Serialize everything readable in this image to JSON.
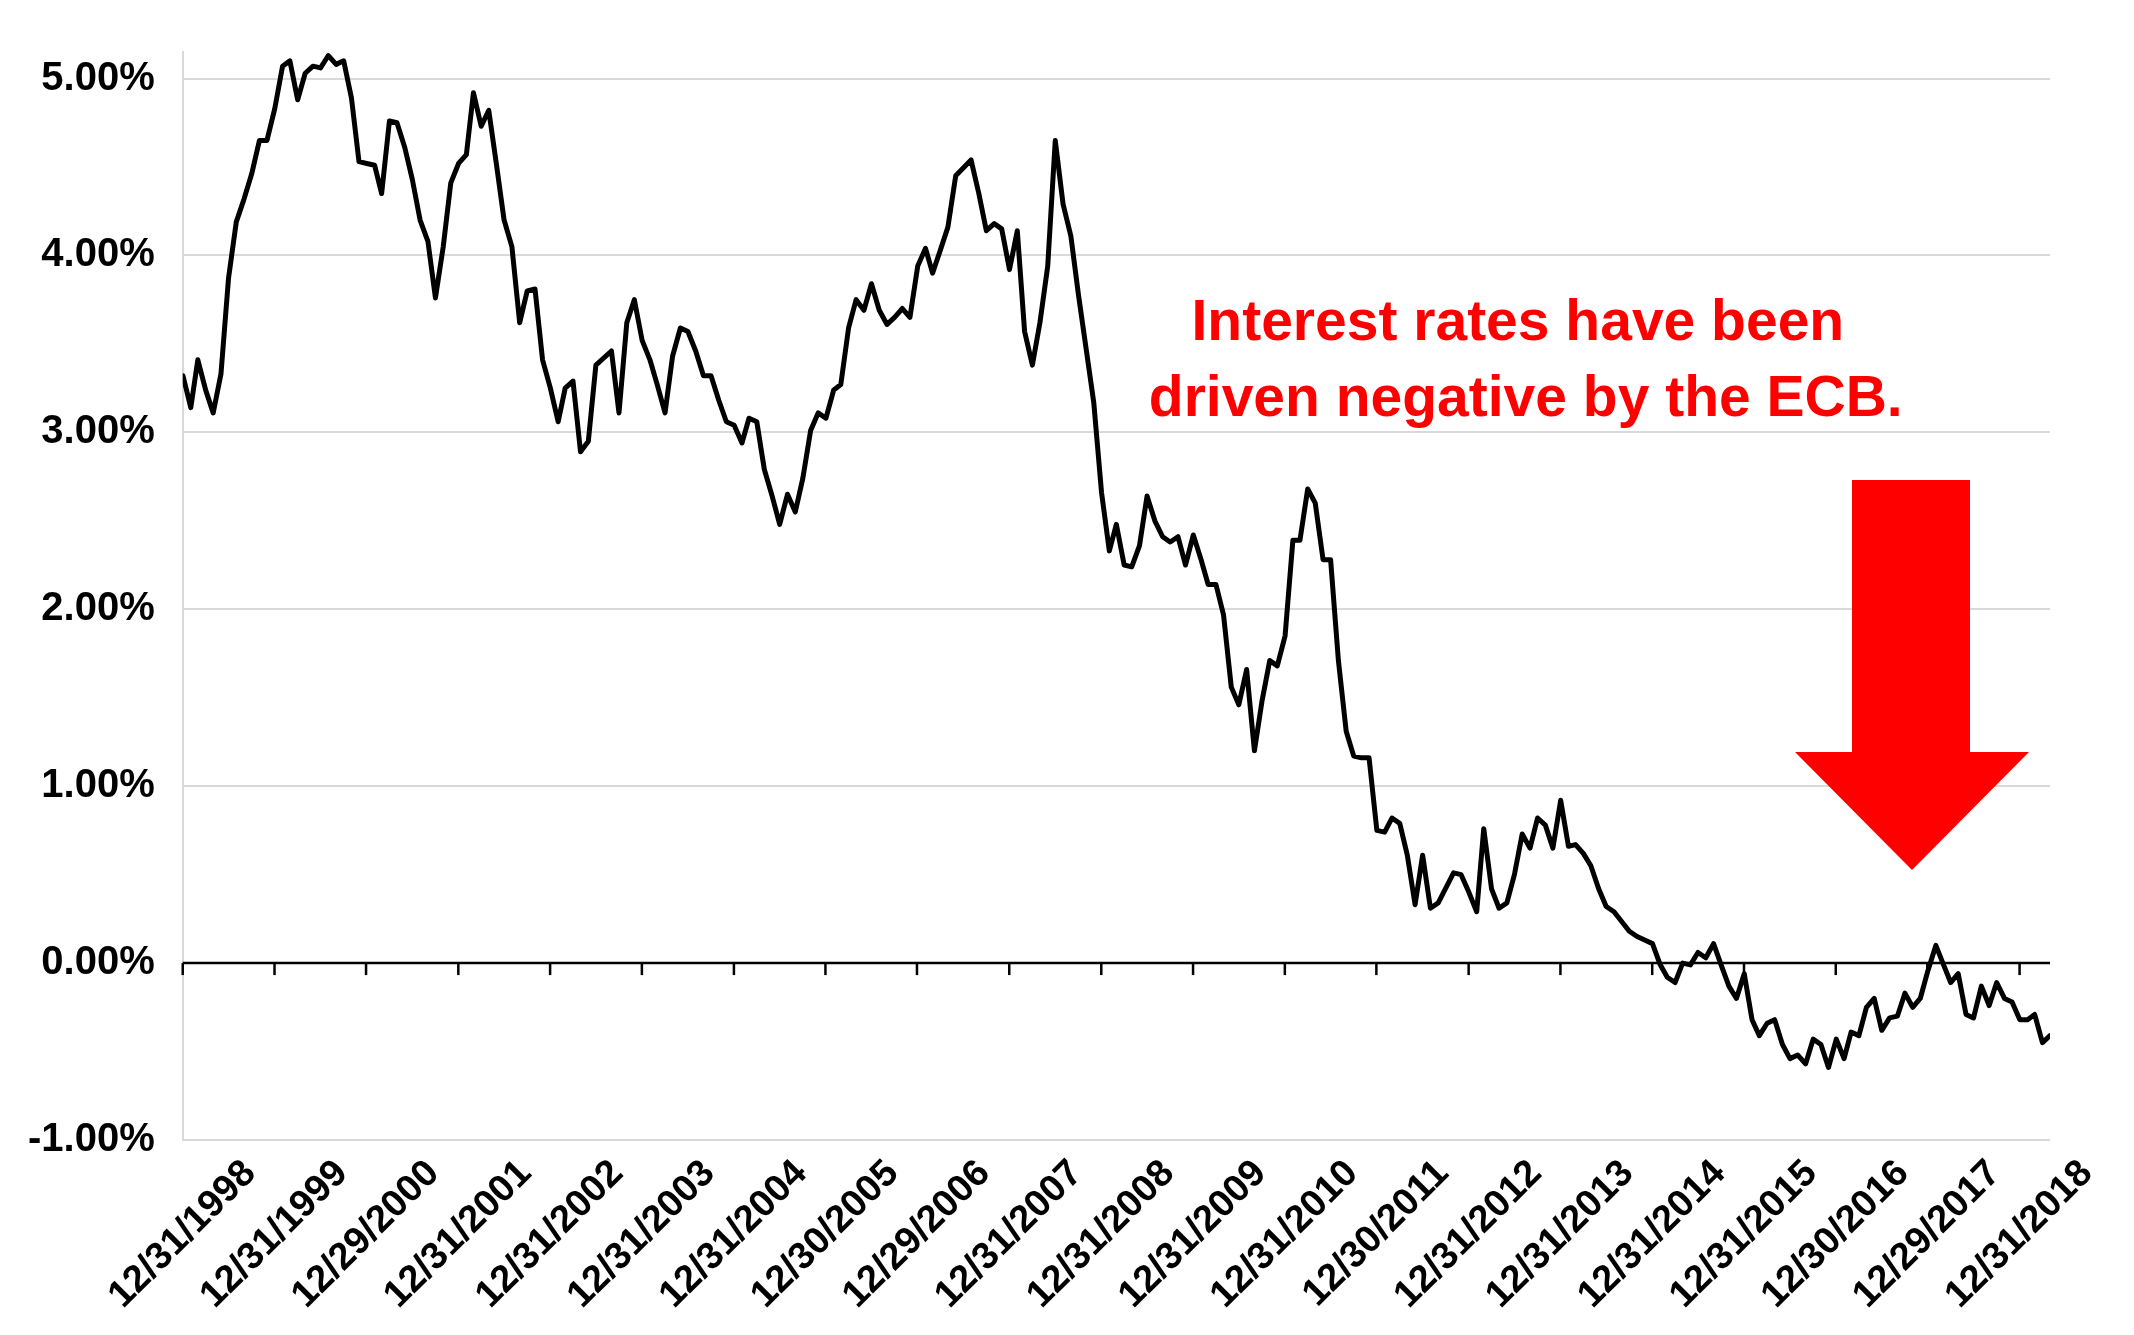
{
  "chart_data": {
    "type": "line",
    "annotations": [
      "Interest rates have been\n driven negative by the ECB."
    ],
    "x": [
      "1999-01",
      "1999-02",
      "1999-03",
      "1999-04",
      "1999-05",
      "1999-06",
      "1999-07",
      "1999-08",
      "1999-09",
      "1999-10",
      "1999-11",
      "1999-12",
      "2000-01",
      "2000-02",
      "2000-03",
      "2000-04",
      "2000-05",
      "2000-06",
      "2000-07",
      "2000-08",
      "2000-09",
      "2000-10",
      "2000-11",
      "2000-12",
      "2001-01",
      "2001-02",
      "2001-03",
      "2001-04",
      "2001-05",
      "2001-06",
      "2001-07",
      "2001-08",
      "2001-09",
      "2001-10",
      "2001-11",
      "2001-12",
      "2002-01",
      "2002-02",
      "2002-03",
      "2002-04",
      "2002-05",
      "2002-06",
      "2002-07",
      "2002-08",
      "2002-09",
      "2002-10",
      "2002-11",
      "2002-12",
      "2003-01",
      "2003-02",
      "2003-03",
      "2003-04",
      "2003-05",
      "2003-06",
      "2003-07",
      "2003-09",
      "2003-10",
      "2003-11",
      "2003-12",
      "2004-01",
      "2004-02",
      "2004-03",
      "2004-04",
      "2004-05",
      "2004-06",
      "2004-07",
      "2004-08",
      "2004-09",
      "2004-10",
      "2004-11",
      "2004-12",
      "2005-01",
      "2005-02",
      "2005-03",
      "2005-04",
      "2005-05",
      "2005-06",
      "2005-07",
      "2005-08",
      "2005-09",
      "2005-10",
      "2005-11",
      "2005-12",
      "2006-01",
      "2006-02",
      "2006-03",
      "2006-04",
      "2006-05",
      "2006-06",
      "2006-07",
      "2006-08",
      "2006-09",
      "2006-10",
      "2006-11",
      "2006-12",
      "2007-01",
      "2007-02",
      "2007-03",
      "2007-04",
      "2007-05",
      "2007-06",
      "2007-08",
      "2007-09",
      "2007-10",
      "2007-11",
      "2007-12",
      "2008-01",
      "2008-02",
      "2008-03",
      "2008-04",
      "2008-05",
      "2008-06",
      "2008-07",
      "2008-08",
      "2008-09",
      "2008-10",
      "2008-12",
      "2009-01",
      "2009-02",
      "2009-03",
      "2009-04",
      "2009-05",
      "2009-06",
      "2009-07",
      "2009-08",
      "2009-09",
      "2009-10",
      "2009-11",
      "2009-12",
      "2010-01",
      "2010-02",
      "2010-03",
      "2010-04",
      "2010-05",
      "2010-06",
      "2010-07",
      "2010-08",
      "2010-09",
      "2010-10",
      "2010-11",
      "2010-12",
      "2011-01",
      "2011-02",
      "2011-03",
      "2011-04",
      "2011-05",
      "2011-06",
      "2011-07",
      "2011-08",
      "2011-09",
      "2011-10",
      "2011-11",
      "2011-12",
      "2012-01",
      "2012-02",
      "2012-03",
      "2012-04",
      "2012-05",
      "2012-06",
      "2012-07",
      "2012-08",
      "2012-09",
      "2012-11",
      "2012-12",
      "2013-01",
      "2013-02",
      "2013-03",
      "2013-04",
      "2013-05",
      "2013-06",
      "2013-07",
      "2013-08",
      "2013-09",
      "2013-10",
      "2013-11",
      "2013-12",
      "2014-01",
      "2014-02",
      "2014-03",
      "2014-04",
      "2014-05",
      "2014-06",
      "2014-07",
      "2014-08",
      "2014-10",
      "2014-11",
      "2014-12",
      "2015-01",
      "2015-02",
      "2015-03",
      "2015-04",
      "2015-05",
      "2015-06",
      "2015-07",
      "2015-08",
      "2015-09",
      "2015-10",
      "2015-11",
      "2015-12",
      "2016-01",
      "2016-02",
      "2016-03",
      "2016-04",
      "2016-05",
      "2016-06",
      "2016-07",
      "2016-08",
      "2016-09",
      "2016-10",
      "2016-11",
      "2016-12",
      "2017-01",
      "2017-02",
      "2017-03",
      "2017-04",
      "2017-05",
      "2017-06",
      "2017-07",
      "2017-08",
      "2017-09",
      "2017-10",
      "2017-11",
      "2017-12",
      "2018-01",
      "2018-02",
      "2018-03",
      "2018-04",
      "2018-05",
      "2018-06",
      "2018-07",
      "2018-08",
      "2018-09",
      "2018-10",
      "2018-11",
      "2018-12",
      "2019-01",
      "2019-02",
      "2019-03",
      "2019-04",
      "2019-05"
    ],
    "series": [
      {
        "color": "#000000",
        "values": [
          3.32,
          3.14,
          3.41,
          3.24,
          3.11,
          3.33,
          3.87,
          4.19,
          4.32,
          4.46,
          4.65,
          4.65,
          4.83,
          5.07,
          5.1,
          4.88,
          5.03,
          5.07,
          5.06,
          5.13,
          5.08,
          5.1,
          4.89,
          4.53,
          4.52,
          4.51,
          4.35,
          4.76,
          4.75,
          4.61,
          4.43,
          4.2,
          4.08,
          3.76,
          4.05,
          4.41,
          4.52,
          4.57,
          4.92,
          4.73,
          4.82,
          4.51,
          4.2,
          4.05,
          3.62,
          3.8,
          3.81,
          3.41,
          3.25,
          3.06,
          3.25,
          3.29,
          2.89,
          2.95,
          3.38,
          3.46,
          3.11,
          3.62,
          3.75,
          3.52,
          3.41,
          3.27,
          3.11,
          3.43,
          3.59,
          3.57,
          3.46,
          3.32,
          3.32,
          3.18,
          3.06,
          3.04,
          2.94,
          3.08,
          3.06,
          2.79,
          2.64,
          2.48,
          2.65,
          2.55,
          2.74,
          3.01,
          3.11,
          3.08,
          3.24,
          3.27,
          3.59,
          3.75,
          3.69,
          3.84,
          3.69,
          3.61,
          3.65,
          3.7,
          3.65,
          3.94,
          4.04,
          3.9,
          4.03,
          4.16,
          4.45,
          4.54,
          4.35,
          4.14,
          4.18,
          4.15,
          3.92,
          4.14,
          3.57,
          3.38,
          3.62,
          3.94,
          4.65,
          4.29,
          4.11,
          3.78,
          3.17,
          2.66,
          2.33,
          2.48,
          2.25,
          2.24,
          2.36,
          2.64,
          2.5,
          2.41,
          2.38,
          2.41,
          2.25,
          2.42,
          2.28,
          2.14,
          2.14,
          1.97,
          1.56,
          1.46,
          1.66,
          1.2,
          1.48,
          1.71,
          1.68,
          1.85,
          2.39,
          2.39,
          2.68,
          2.6,
          2.28,
          2.28,
          1.71,
          1.31,
          1.17,
          1.16,
          1.16,
          0.75,
          0.74,
          0.82,
          0.79,
          0.61,
          0.33,
          0.61,
          0.31,
          0.34,
          0.51,
          0.5,
          0.4,
          0.29,
          0.76,
          0.42,
          0.31,
          0.34,
          0.5,
          0.73,
          0.65,
          0.82,
          0.78,
          0.65,
          0.92,
          0.66,
          0.67,
          0.62,
          0.55,
          0.42,
          0.32,
          0.29,
          0.18,
          0.15,
          0.13,
          0.11,
          -0.01,
          -0.08,
          -0.11,
          0.0,
          -0.01,
          0.06,
          0.03,
          0.11,
          -0.01,
          -0.13,
          -0.2,
          -0.06,
          -0.32,
          -0.41,
          -0.34,
          -0.32,
          -0.46,
          -0.54,
          -0.52,
          -0.57,
          -0.43,
          -0.46,
          -0.59,
          -0.43,
          -0.54,
          -0.39,
          -0.41,
          -0.25,
          -0.2,
          -0.38,
          -0.31,
          -0.3,
          -0.17,
          -0.25,
          -0.2,
          -0.04,
          0.1,
          0.0,
          -0.11,
          -0.06,
          -0.29,
          -0.31,
          -0.13,
          -0.24,
          -0.11,
          -0.2,
          -0.22,
          -0.32,
          -0.32,
          -0.29,
          -0.45,
          -0.41
        ]
      }
    ],
    "xlim": [
      "1998-12-31",
      "2019-05-01"
    ],
    "xticks": [
      {
        "value": "1998-12-31",
        "label": "12/31/1998"
      },
      {
        "value": "1999-12-31",
        "label": "12/31/1999"
      },
      {
        "value": "2000-12-29",
        "label": "12/29/2000"
      },
      {
        "value": "2001-12-31",
        "label": "12/31/2001"
      },
      {
        "value": "2002-12-31",
        "label": "12/31/2002"
      },
      {
        "value": "2003-12-31",
        "label": "12/31/2003"
      },
      {
        "value": "2004-12-31",
        "label": "12/31/2004"
      },
      {
        "value": "2005-12-30",
        "label": "12/30/2005"
      },
      {
        "value": "2006-12-29",
        "label": "12/29/2006"
      },
      {
        "value": "2007-12-31",
        "label": "12/31/2007"
      },
      {
        "value": "2008-12-31",
        "label": "12/31/2008"
      },
      {
        "value": "2009-12-31",
        "label": "12/31/2009"
      },
      {
        "value": "2010-12-31",
        "label": "12/31/2010"
      },
      {
        "value": "2011-12-30",
        "label": "12/30/2011"
      },
      {
        "value": "2012-12-31",
        "label": "12/31/2012"
      },
      {
        "value": "2013-12-31",
        "label": "12/31/2013"
      },
      {
        "value": "2014-12-31",
        "label": "12/31/2014"
      },
      {
        "value": "2015-12-31",
        "label": "12/31/2015"
      },
      {
        "value": "2016-12-30",
        "label": "12/30/2016"
      },
      {
        "value": "2017-12-29",
        "label": "12/29/2017"
      },
      {
        "value": "2018-12-31",
        "label": "12/31/2018"
      }
    ],
    "ylim": [
      -1,
      5.15
    ],
    "yticks": [
      {
        "value": -1,
        "label": "-1.00%"
      },
      {
        "value": 0,
        "label": "0.00%"
      },
      {
        "value": 1,
        "label": "1.00%"
      },
      {
        "value": 2,
        "label": "2.00%"
      },
      {
        "value": 3,
        "label": "3.00%"
      },
      {
        "value": 4,
        "label": "4.00%"
      },
      {
        "value": 5,
        "label": "5.00%"
      }
    ],
    "grid": "y",
    "marker": "none",
    "line_style": "solid"
  }
}
